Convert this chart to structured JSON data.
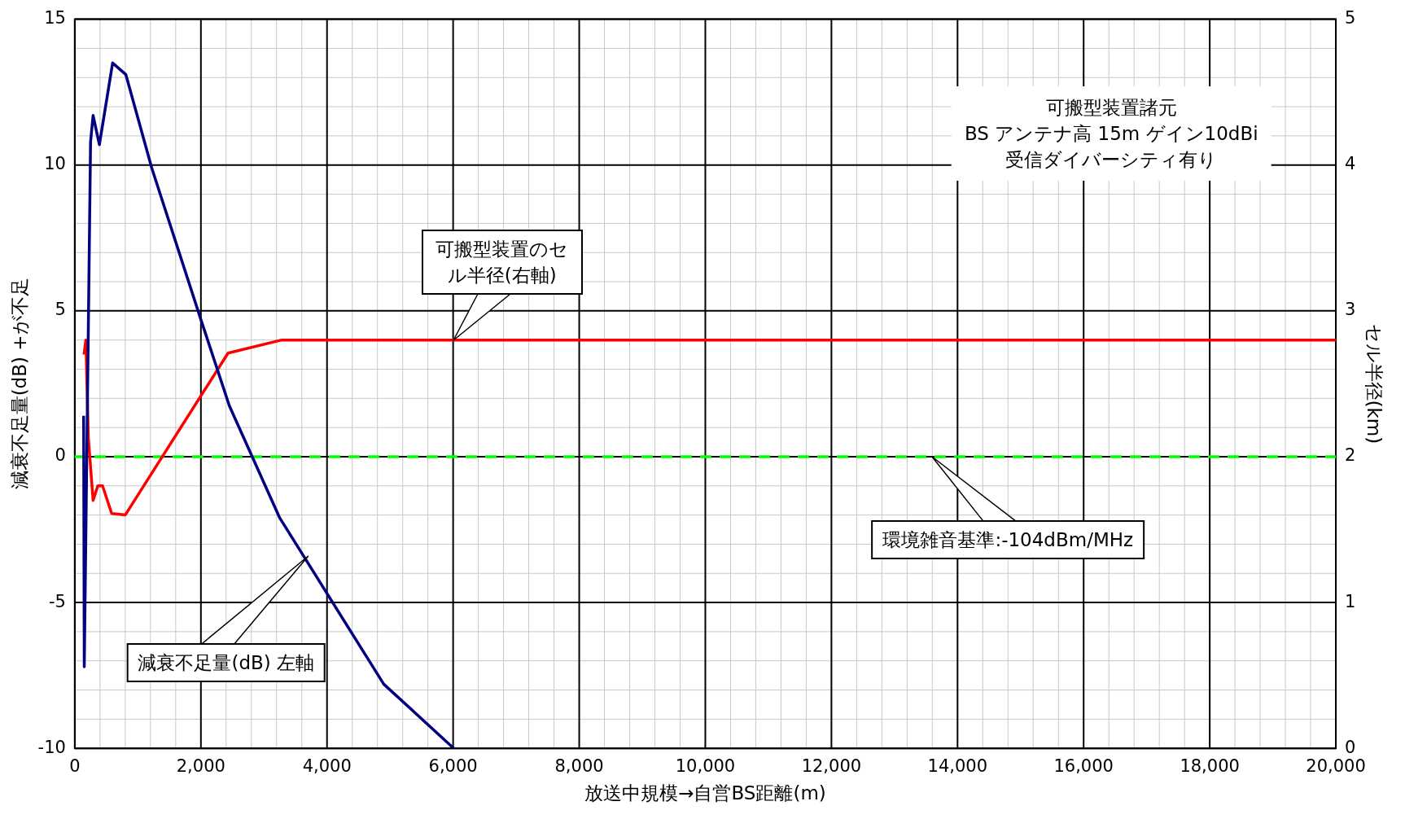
{
  "chart_data": {
    "type": "line",
    "xlabel": "放送中規模→自営BS距離(m)",
    "ylabel": "減衰不足量(dB) +が不足",
    "y2label": "セル半径(km)",
    "xlim": [
      0,
      20000
    ],
    "xticks": [
      0,
      {
        "value": 2000,
        "label": "2,000"
      },
      {
        "value": 4000,
        "label": "4,000"
      },
      {
        "value": 6000,
        "label": "6,000"
      },
      {
        "value": 8000,
        "label": "8,000"
      },
      {
        "value": 10000,
        "label": "10,000"
      },
      {
        "value": 12000,
        "label": "12,000"
      },
      {
        "value": 14000,
        "label": "14,000"
      },
      {
        "value": 16000,
        "label": "16,000"
      },
      {
        "value": 18000,
        "label": "18,000"
      },
      {
        "value": 20000,
        "label": "20,000"
      }
    ],
    "ylim": [
      -10,
      15
    ],
    "yticks": [
      -10,
      -5,
      0,
      5,
      10,
      15
    ],
    "y2lim": [
      0,
      5
    ],
    "y2ticks": [
      0,
      1,
      2,
      3,
      4,
      5
    ],
    "grid": true,
    "legend": false,
    "marker": "none",
    "line_style": "solid",
    "series": [
      {
        "color": "#000080",
        "x": [
          140,
          150,
          250,
          290,
          390,
          480,
          600,
          810,
          1220,
          2000,
          2450,
          3250,
          4900,
          6010
        ],
        "values": [
          1.4,
          -7.2,
          10.8,
          11.7,
          10.7,
          11.9,
          13.5,
          13.1,
          9.9,
          4.7,
          1.75,
          -2.1,
          -7.8,
          -10
        ]
      },
      {
        "color": "#ff0000",
        "axis": "y2",
        "x": [
          146,
          175,
          215,
          290,
          365,
          440,
          585,
          800,
          1240,
          2430,
          3280,
          20000
        ],
        "values": [
          2.7,
          2.8,
          2.13,
          1.7,
          1.8,
          1.8,
          1.61,
          1.6,
          1.9,
          2.71,
          2.8,
          2.8
        ]
      }
    ],
    "ref_lines": [
      {
        "axis": "y",
        "value": 0,
        "color": "#00ff00",
        "line_style": "dashed"
      }
    ],
    "annotations": [
      "可搬型装置諸元\nBS アンテナ高 15m ゲイン10dBi\n受信ダイバーシティ有り",
      {
        "text": "可搬型装置のセル半径(右軸)",
        "x": 6000,
        "y": 4
      },
      "環境雑音基準:-104dBm/MHz",
      "減衰不足量(dB) 左軸"
    ]
  }
}
